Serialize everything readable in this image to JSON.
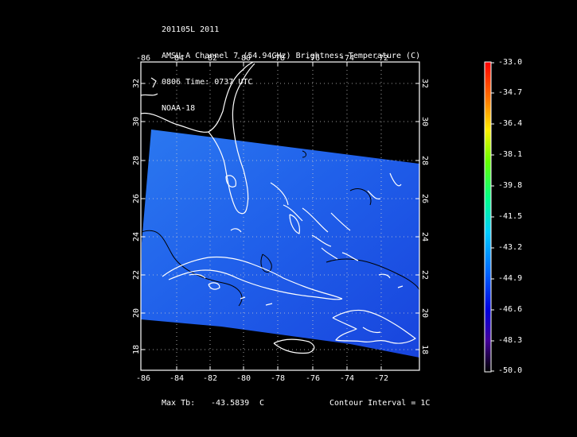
{
  "header": {
    "line1": "201105L 2011",
    "line2": "AMSU-A Channel 7 (54.94GHz) Brightness Temperature (C)",
    "line3": "0806 Time: 0737 UTC",
    "line4": "NOAA-18"
  },
  "axes": {
    "lon_ticks": [
      "-86",
      "-84",
      "-82",
      "-80",
      "-78",
      "-76",
      "-74",
      "-72"
    ],
    "lat_ticks": [
      "32",
      "30",
      "28",
      "26",
      "24",
      "22",
      "20",
      "18"
    ]
  },
  "colorbar": {
    "labels": [
      "-33.0",
      "-34.7",
      "-36.4",
      "-38.1",
      "-39.8",
      "-41.5",
      "-43.2",
      "-44.9",
      "-46.6",
      "-48.3",
      "-50.0"
    ],
    "colors": [
      "#ff0000",
      "#ff8800",
      "#ffff00",
      "#88ff00",
      "#00ff66",
      "#00ffcc",
      "#00bbff",
      "#0044ff",
      "#0000cc",
      "#5500aa",
      "#000000"
    ]
  },
  "footer": {
    "max_tb_label": "Max Tb:",
    "max_tb_value": "-43.5839",
    "max_tb_unit": "C",
    "contour_interval": "Contour Interval = 1C"
  },
  "swath_color": "#1f5be8",
  "coast_color": "#ffffff",
  "contour_color": "#000000"
}
